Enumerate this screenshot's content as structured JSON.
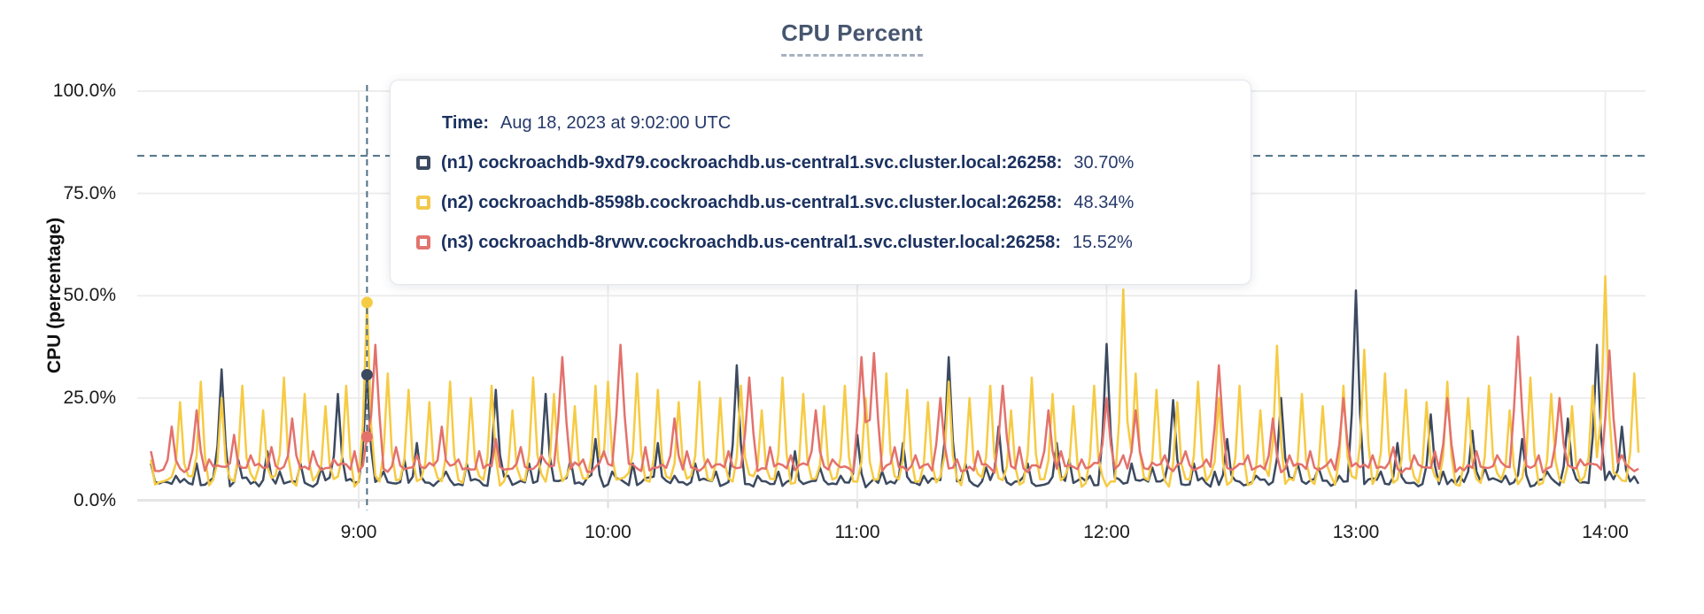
{
  "title": {
    "text": "CPU Percent"
  },
  "tooltip": {
    "time_label": "Time:",
    "time_value": "Aug 18, 2023 at 9:02:00 UTC",
    "rows": [
      {
        "id": "n1",
        "label": "(n1) cockroachdb-9xd79.cockroachdb.us-central1.svc.cluster.local:26258:",
        "value": "30.70%",
        "color": "#3C4A60"
      },
      {
        "id": "n2",
        "label": "(n2) cockroachdb-8598b.cockroachdb.us-central1.svc.cluster.local:26258:",
        "value": "48.34%",
        "color": "#F2C94C"
      },
      {
        "id": "n3",
        "label": "(n3) cockroachdb-8rvwv.cockroachdb.us-central1.svc.cluster.local:26258:",
        "value": "15.52%",
        "color": "#E2736E"
      }
    ]
  },
  "chart_data": {
    "type": "line",
    "title": "CPU Percent",
    "xlabel": "",
    "ylabel": "CPU (percentage)",
    "ylim": [
      0,
      100
    ],
    "grid": true,
    "yticks": [
      {
        "v": 0,
        "label": "0.0%"
      },
      {
        "v": 25,
        "label": "25.0%"
      },
      {
        "v": 50,
        "label": "50.0%"
      },
      {
        "v": 75,
        "label": "75.0%"
      },
      {
        "v": 100,
        "label": "100.0%"
      }
    ],
    "xticks": [
      {
        "m": 50,
        "label": "9:00"
      },
      {
        "m": 110,
        "label": "10:00"
      },
      {
        "m": 170,
        "label": "11:00"
      },
      {
        "m": 230,
        "label": "12:00"
      },
      {
        "m": 290,
        "label": "13:00"
      },
      {
        "m": 350,
        "label": "14:00"
      }
    ],
    "t_end": 358,
    "crosshair": {
      "t": 52,
      "time": "9:02:00",
      "hline_value": 84.2,
      "color": "#4E7086",
      "hover_values": {
        "n1": 30.7,
        "n2": 48.34,
        "n3": 15.52
      }
    },
    "series": [
      {
        "id": "n1",
        "name": "cockroachdb-9xd79.cockroachdb.us-central1.svc.cluster.local:26258",
        "color": "#3C4A60",
        "base": 4.5,
        "noise": 1.6,
        "seed": 7,
        "spike_w": 1.7,
        "periodic": {
          "period": 5,
          "phase": 1,
          "peaks": [
            8,
            6,
            9,
            7,
            10,
            6,
            7,
            9
          ]
        },
        "spikes": {
          "0": 9,
          "17": 32,
          "28": 12,
          "45": 26,
          "52": 30.7,
          "64": 14,
          "83": 27,
          "95": 26,
          "107": 15,
          "122": 14,
          "141": 33,
          "155": 12,
          "170": 16,
          "181": 14,
          "192": 35,
          "204": 18,
          "218": 14,
          "230": 38.2,
          "246": 24.5,
          "259": 15,
          "272": 25,
          "290": 51.3,
          "300": 14,
          "308": 21,
          "318": 17,
          "330": 15,
          "341": 20,
          "348": 38,
          "354": 18
        }
      },
      {
        "id": "n2",
        "name": "cockroachdb-8598b.cockroachdb.us-central1.svc.cluster.local:26258",
        "color": "#F6CB44",
        "base": 5,
        "noise": 2.2,
        "seed": 11,
        "spike_w": 1.6,
        "periodic": {
          "period": 5,
          "phase": 2,
          "peaks": [
            27,
            24,
            29,
            25,
            28,
            22,
            30,
            26,
            23,
            28,
            25,
            31
          ]
        },
        "spikes": {
          "0": 10,
          "52": 48.34,
          "110": 29,
          "234": 51.5,
          "271": 37.8,
          "292": 36.8,
          "350": 54.8
        }
      },
      {
        "id": "n3",
        "name": "cockroachdb-8rvwv.cockroachdb.us-central1.svc.cluster.local:26258",
        "color": "#E3716C",
        "base": 8,
        "noise": 1.6,
        "seed": 23,
        "spike_w": 2.2,
        "periodic": {
          "period": 5,
          "phase": 4,
          "peaks": [
            11,
            12,
            10,
            12,
            11,
            13
          ]
        },
        "spikes": {
          "0": 12,
          "5": 18,
          "11": 22,
          "20": 16,
          "34": 20,
          "52": 15.52,
          "54": 38,
          "70": 18,
          "83": 15,
          "99": 35,
          "113": 38,
          "126": 20,
          "144": 30,
          "160": 22,
          "171": 35,
          "174": 36,
          "190": 25,
          "205": 28,
          "216": 22,
          "230": 25,
          "237": 22,
          "257": 33,
          "270": 20,
          "287": 25,
          "312": 25,
          "329": 40,
          "339": 25,
          "351": 36.6
        }
      }
    ]
  }
}
